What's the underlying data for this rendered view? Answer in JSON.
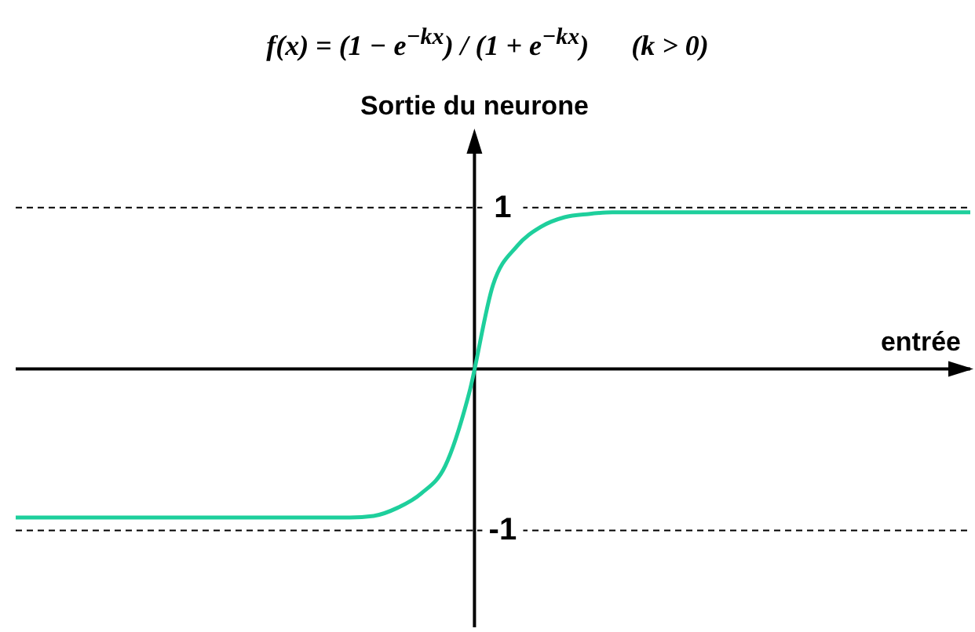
{
  "chart_data": {
    "type": "line",
    "title": "f(x) = (1 − e$^{−kx}$) / (1 + e$^{−kx}$)      (k > 0)",
    "ylabel": "Sortie du neurone",
    "xlabel": "entrée",
    "categories": [
      null,
      null,
      null,
      null,
      null,
      null,
      null,
      null,
      null,
      null,
      null,
      null,
      null,
      null,
      null,
      null,
      null,
      null,
      null,
      null,
      null,
      null,
      null,
      null,
      null,
      null,
      null,
      null,
      null,
      null,
      null,
      null,
      null,
      null,
      null,
      null,
      null,
      null,
      null,
      null,
      null
    ],
    "series": [
      {
        "color": "#1ecf9c",
        "values": [
          -0.92,
          -0.92,
          -0.92,
          -0.92,
          -0.92,
          -0.92,
          -0.92,
          -0.92,
          -0.92,
          -0.92,
          -0.92,
          -0.92,
          -0.92,
          -0.92,
          -0.92,
          -0.91,
          -0.86,
          -0.77,
          -0.6,
          -0.15,
          0.52,
          0.76,
          0.88,
          0.94,
          0.96,
          0.97,
          0.97,
          0.97,
          0.97,
          0.97,
          0.97,
          0.97,
          0.97,
          0.97,
          0.97,
          0.97,
          0.97,
          0.97,
          0.97,
          0.97,
          0.97
        ]
      }
    ],
    "ylim": [
      -1.6,
      1.45
    ],
    "yticks": [
      -1,
      1
    ],
    "grid": "y",
    "marker": "none",
    "line_style": "solid",
    "legend": false
  }
}
